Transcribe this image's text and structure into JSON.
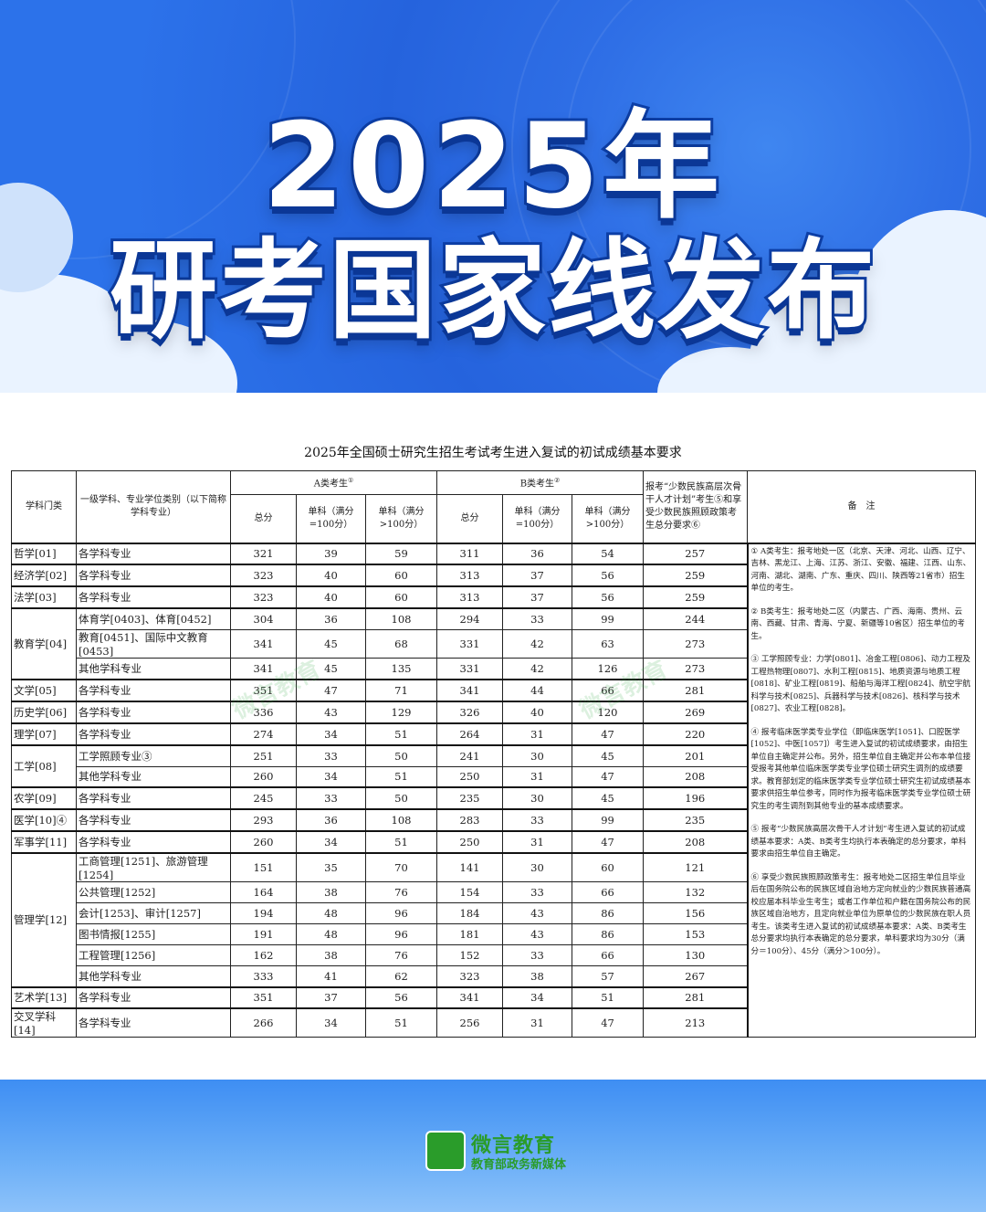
{
  "banner": {
    "line1": "2025年",
    "line2": "研考国家线发布"
  },
  "document": {
    "title": "2025年全国硕士研究生招生考试考生进入复试的初试成绩基本要求",
    "headers": {
      "category": "学科门类",
      "discipline": "一级学科、专业学位类别（以下简称学科专业）",
      "group_a": "A类考生",
      "group_a_mark": "①",
      "group_b": "B类考生",
      "group_b_mark": "②",
      "total": "总分",
      "single_100": "单科（满分=100分）",
      "single_gt100": "单科（满分>100分）",
      "minority": "报考“少数民族高层次骨干人才计划”考生⑤和享受少数民族照顾政策考生总分要求⑥",
      "remarks": "备　注"
    },
    "groups": [
      {
        "category": "哲学[01]",
        "rows": [
          [
            "各学科专业",
            "321",
            "39",
            "59",
            "311",
            "36",
            "54",
            "257"
          ]
        ]
      },
      {
        "category": "经济学[02]",
        "rows": [
          [
            "各学科专业",
            "323",
            "40",
            "60",
            "313",
            "37",
            "56",
            "259"
          ]
        ]
      },
      {
        "category": "法学[03]",
        "rows": [
          [
            "各学科专业",
            "323",
            "40",
            "60",
            "313",
            "37",
            "56",
            "259"
          ]
        ]
      },
      {
        "category": "教育学[04]",
        "rows": [
          [
            "体育学[0403]、体育[0452]",
            "304",
            "36",
            "108",
            "294",
            "33",
            "99",
            "244"
          ],
          [
            "教育[0451]、国际中文教育[0453]",
            "341",
            "45",
            "68",
            "331",
            "42",
            "63",
            "273"
          ],
          [
            "其他学科专业",
            "341",
            "45",
            "135",
            "331",
            "42",
            "126",
            "273"
          ]
        ]
      },
      {
        "category": "文学[05]",
        "rows": [
          [
            "各学科专业",
            "351",
            "47",
            "71",
            "341",
            "44",
            "66",
            "281"
          ]
        ]
      },
      {
        "category": "历史学[06]",
        "rows": [
          [
            "各学科专业",
            "336",
            "43",
            "129",
            "326",
            "40",
            "120",
            "269"
          ]
        ]
      },
      {
        "category": "理学[07]",
        "rows": [
          [
            "各学科专业",
            "274",
            "34",
            "51",
            "264",
            "31",
            "47",
            "220"
          ]
        ]
      },
      {
        "category": "工学[08]",
        "rows": [
          [
            "工学照顾专业③",
            "251",
            "33",
            "50",
            "241",
            "30",
            "45",
            "201"
          ],
          [
            "其他学科专业",
            "260",
            "34",
            "51",
            "250",
            "31",
            "47",
            "208"
          ]
        ]
      },
      {
        "category": "农学[09]",
        "rows": [
          [
            "各学科专业",
            "245",
            "33",
            "50",
            "235",
            "30",
            "45",
            "196"
          ]
        ]
      },
      {
        "category": "医学[10]④",
        "rows": [
          [
            "各学科专业",
            "293",
            "36",
            "108",
            "283",
            "33",
            "99",
            "235"
          ]
        ]
      },
      {
        "category": "军事学[11]",
        "rows": [
          [
            "各学科专业",
            "260",
            "34",
            "51",
            "250",
            "31",
            "47",
            "208"
          ]
        ]
      },
      {
        "category": "管理学[12]",
        "rows": [
          [
            "工商管理[1251]、旅游管理[1254]",
            "151",
            "35",
            "70",
            "141",
            "30",
            "60",
            "121"
          ],
          [
            "公共管理[1252]",
            "164",
            "38",
            "76",
            "154",
            "33",
            "66",
            "132"
          ],
          [
            "会计[1253]、审计[1257]",
            "194",
            "48",
            "96",
            "184",
            "43",
            "86",
            "156"
          ],
          [
            "图书情报[1255]",
            "191",
            "48",
            "96",
            "181",
            "43",
            "86",
            "153"
          ],
          [
            "工程管理[1256]",
            "162",
            "38",
            "76",
            "152",
            "33",
            "66",
            "130"
          ],
          [
            "其他学科专业",
            "333",
            "41",
            "62",
            "323",
            "38",
            "57",
            "267"
          ]
        ]
      },
      {
        "category": "艺术学[13]",
        "rows": [
          [
            "各学科专业",
            "351",
            "37",
            "56",
            "341",
            "34",
            "51",
            "281"
          ]
        ]
      },
      {
        "category": "交叉学科[14]",
        "rows": [
          [
            "各学科专业",
            "266",
            "34",
            "51",
            "256",
            "31",
            "47",
            "213"
          ]
        ]
      }
    ],
    "notes": [
      "① A类考生：报考地处一区（北京、天津、河北、山西、辽宁、吉林、黑龙江、上海、江苏、浙江、安徽、福建、江西、山东、河南、湖北、湖南、广东、重庆、四川、陕西等21省市）招生单位的考生。",
      "② B类考生：报考地处二区（内蒙古、广西、海南、贵州、云南、西藏、甘肃、青海、宁夏、新疆等10省区）招生单位的考生。",
      "③ 工学照顾专业：力学[0801]、冶金工程[0806]、动力工程及工程热物理[0807]、水利工程[0815]、地质资源与地质工程[0818]、矿业工程[0819]、船舶与海洋工程[0824]、航空宇航科学与技术[0825]、兵器科学与技术[0826]、核科学与技术[0827]、农业工程[0828]。",
      "④ 报考临床医学类专业学位（即临床医学[1051]、口腔医学[1052]、中医[1057]）考生进入复试的初试成绩要求，由招生单位自主确定并公布。另外，招生单位自主确定并公布本单位接受报考其他单位临床医学类专业学位硕士研究生调剂的成绩要求。教育部划定的临床医学类专业学位硕士研究生初试成绩基本要求供招生单位参考，同时作为报考临床医学类专业学位硕士研究生的考生调剂到其他专业的基本成绩要求。",
      "⑤ 报考“少数民族高层次骨干人才计划”考生进入复试的初试成绩基本要求：A类、B类考生均执行本表确定的总分要求，单科要求由招生单位自主确定。",
      "⑥ 享受少数民族照顾政策考生：报考地处二区招生单位且毕业后在国务院公布的民族区域自治地方定向就业的少数民族普通高校应届本科毕业生考生；或者工作单位和户籍在国务院公布的民族区域自治地方，且定向就业单位为原单位的少数民族在职人员考生。该类考生进入复试的初试成绩基本要求：A类、B类考生总分要求均执行本表确定的总分要求，单科要求均为30分（满分＝100分）、45分（满分＞100分）。"
    ]
  },
  "watermark": "微言教育",
  "footer": {
    "logo_name": "微言教育",
    "logo_sub": "教育部政务新媒体"
  },
  "colors": {
    "banner_blue": "#2563dd",
    "title_outline": "#0d3fa8",
    "logo_green": "#2a9c2a",
    "footer_blue": "#3e8ef3"
  }
}
